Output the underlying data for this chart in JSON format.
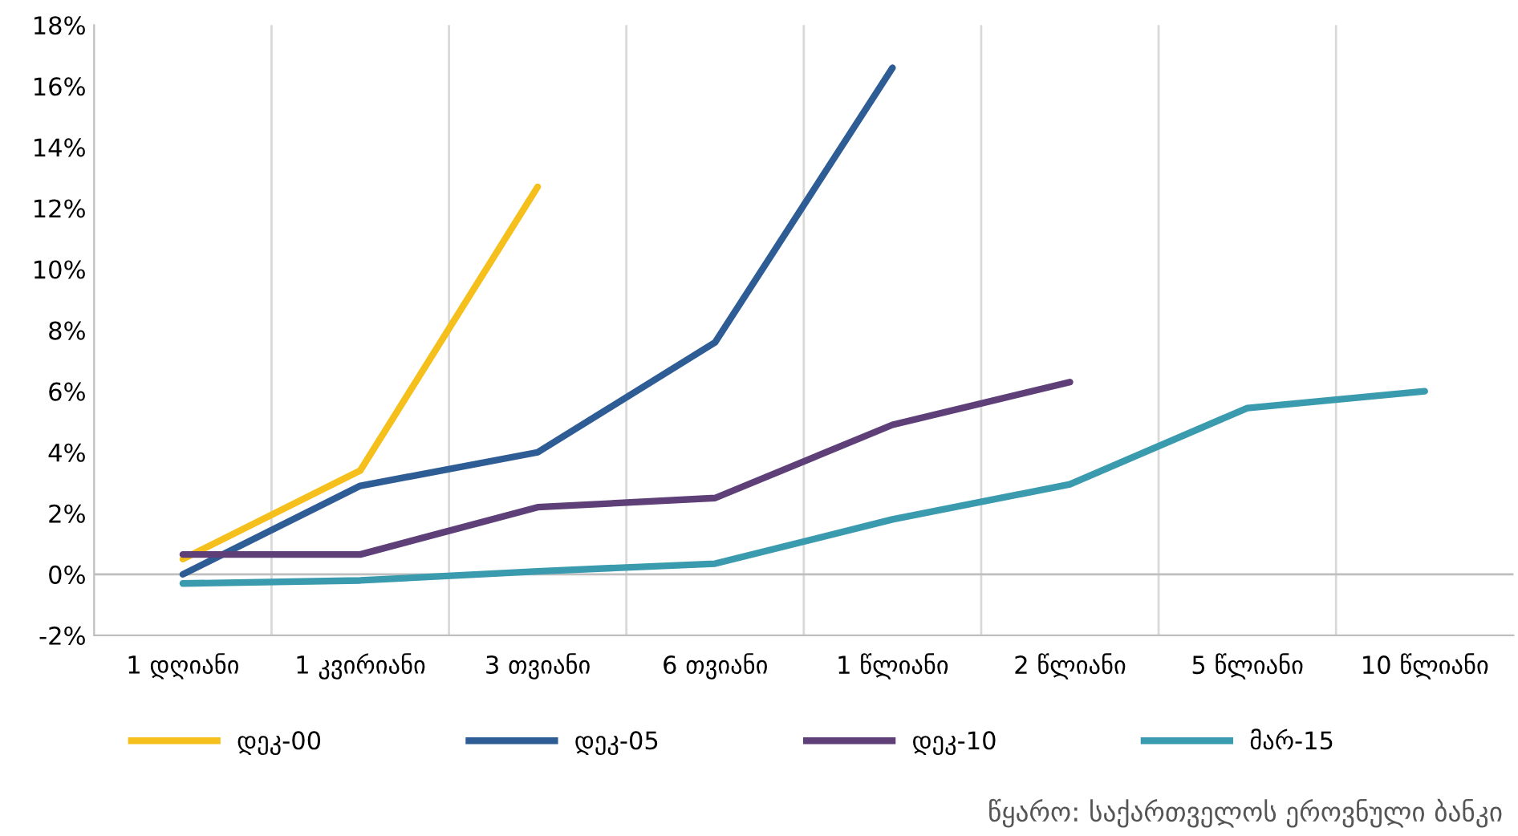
{
  "chart_data": {
    "type": "line",
    "categories": [
      "1 დღიანი",
      "1 კვირიანი",
      "3 თვიანი",
      "6 თვიანი",
      "1 წლიანი",
      "2 წლიანი",
      "5 წლიანი",
      "10 წლიანი"
    ],
    "series": [
      {
        "name": "დეკ-00",
        "color": "#f5c01c",
        "values": [
          0.5,
          3.4,
          12.7,
          null,
          null,
          null,
          null,
          null
        ]
      },
      {
        "name": "დეკ-05",
        "color": "#2e5c94",
        "values": [
          0.0,
          2.9,
          4.0,
          7.6,
          16.6,
          null,
          null,
          null
        ]
      },
      {
        "name": "დეკ-10",
        "color": "#5e3f78",
        "values": [
          0.65,
          0.65,
          2.2,
          2.5,
          4.9,
          6.3,
          null,
          null
        ]
      },
      {
        "name": "მარ-15",
        "color": "#3a9aae",
        "values": [
          -0.3,
          -0.2,
          0.1,
          0.35,
          1.8,
          2.95,
          5.45,
          6.0
        ]
      }
    ],
    "ylim": [
      -2,
      18
    ],
    "yticks": [
      {
        "value": -2,
        "label": "-2%"
      },
      {
        "value": 0,
        "label": "0%"
      },
      {
        "value": 2,
        "label": "2%"
      },
      {
        "value": 4,
        "label": "4%"
      },
      {
        "value": 6,
        "label": "6%"
      },
      {
        "value": 8,
        "label": "8%"
      },
      {
        "value": 10,
        "label": "10%"
      },
      {
        "value": 12,
        "label": "12%"
      },
      {
        "value": 14,
        "label": "14%"
      },
      {
        "value": 16,
        "label": "16%"
      },
      {
        "value": 18,
        "label": "18%"
      }
    ],
    "grid": "x",
    "legend": "bottom",
    "marker": "none",
    "line_style": "solid",
    "annotations": [
      "წყარო: საქართველოს ეროვნული ბანკი"
    ]
  }
}
